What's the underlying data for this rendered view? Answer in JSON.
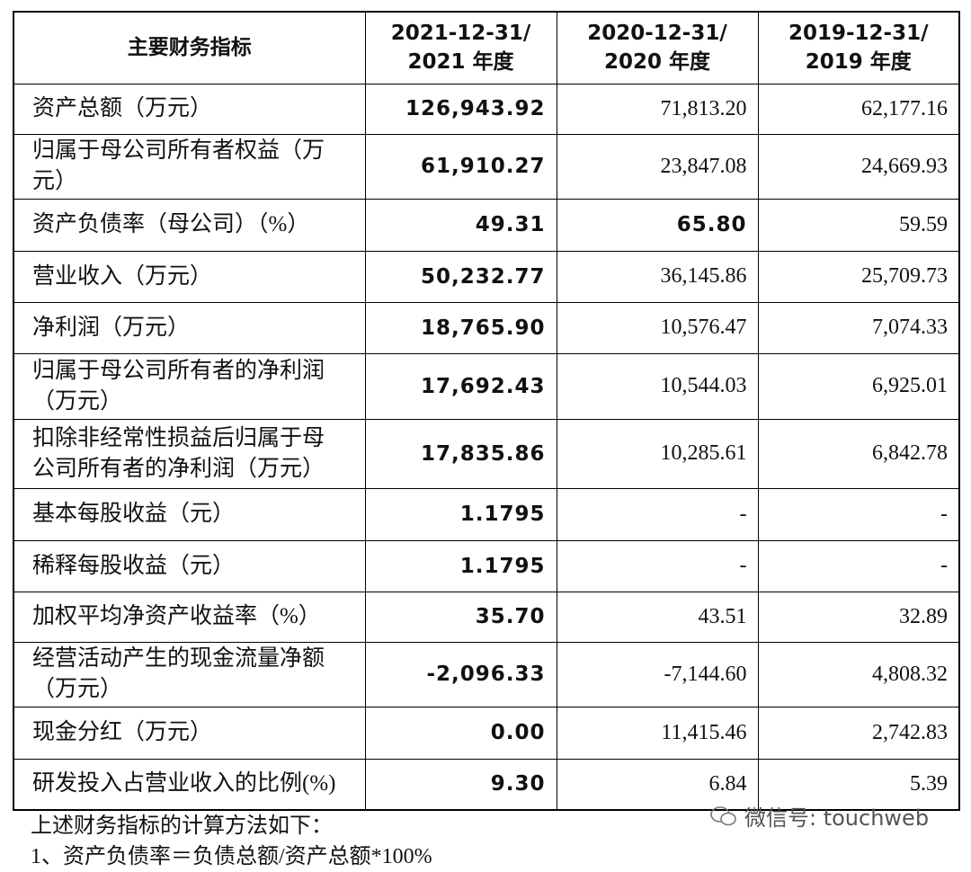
{
  "table": {
    "header": [
      "主要财务指标",
      [
        "2021-12-31/",
        "2021 年度"
      ],
      [
        "2020-12-31/",
        "2020 年度"
      ],
      [
        "2019-12-31/",
        "2019 年度"
      ]
    ],
    "rows": [
      [
        "资产总额（万元）",
        "126,943.92",
        "71,813.20",
        "62,177.16"
      ],
      [
        "归属于母公司所有者权益（万元）",
        "61,910.27",
        "23,847.08",
        "24,669.93"
      ],
      [
        "资产负债率（母公司）（%）",
        "49.31",
        "65.80",
        "59.59"
      ],
      [
        "营业收入（万元）",
        "50,232.77",
        "36,145.86",
        "25,709.73"
      ],
      [
        "净利润（万元）",
        "18,765.90",
        "10,576.47",
        "7,074.33"
      ],
      [
        "归属于母公司所有者的净利润（万元）",
        "17,692.43",
        "10,544.03",
        "6,925.01"
      ],
      [
        "扣除非经常性损益后归属于母公司所有者的净利润（万元）",
        "17,835.86",
        "10,285.61",
        "6,842.78"
      ],
      [
        "基本每股收益（元）",
        "1.1795",
        "-",
        "-"
      ],
      [
        "稀释每股收益（元）",
        "1.1795",
        "-",
        "-"
      ],
      [
        "加权平均净资产收益率（%）",
        "35.70",
        "43.51",
        "32.89"
      ],
      [
        "经营活动产生的现金流量净额（万元）",
        "-2,096.33",
        "-7,144.60",
        "4,808.32"
      ],
      [
        "现金分红（万元）",
        "0.00",
        "11,415.46",
        "2,742.83"
      ],
      [
        "研发投入占营业收入的比例(%)",
        "9.30",
        "6.84",
        "5.39"
      ]
    ]
  },
  "notes": [
    "上述财务指标的计算方法如下：",
    "1、资产负债率＝负债总额/资产总额*100%"
  ],
  "watermark": "微信号: touchweb"
}
